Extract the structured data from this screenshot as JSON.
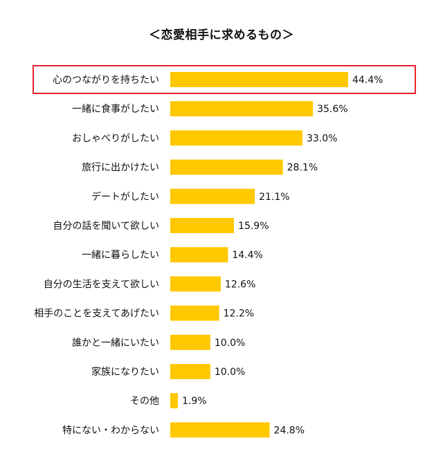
{
  "chart_data": {
    "type": "bar",
    "orientation": "horizontal",
    "title": "＜恋愛相手に求めるもの＞",
    "categories": [
      "心のつながりを持ちたい",
      "一緒に食事がしたい",
      "おしゃべりがしたい",
      "旅行に出かけたい",
      "デートがしたい",
      "自分の話を聞いて欲しい",
      "一緒に暮らしたい",
      "自分の生活を支えて欲しい",
      "相手のことを支えてあげたい",
      "誰かと一緒にいたい",
      "家族になりたい",
      "その他",
      "特にない・わからない"
    ],
    "values": [
      44.4,
      35.6,
      33.0,
      28.1,
      21.1,
      15.9,
      14.4,
      12.6,
      12.2,
      10.0,
      10.0,
      1.9,
      24.8
    ],
    "value_labels": [
      "44.4%",
      "35.6%",
      "33.0%",
      "28.1%",
      "21.1%",
      "15.9%",
      "14.4%",
      "12.6%",
      "12.2%",
      "10.0%",
      "10.0%",
      "1.9%",
      "24.8%"
    ],
    "xlim": [
      0,
      60
    ],
    "grid": false,
    "legend": "none",
    "highlighted_category": "心のつながりを持ちたい",
    "colors": {
      "bar": "#FFC800",
      "highlight_border": "#E8202A",
      "text": "#111111"
    }
  }
}
